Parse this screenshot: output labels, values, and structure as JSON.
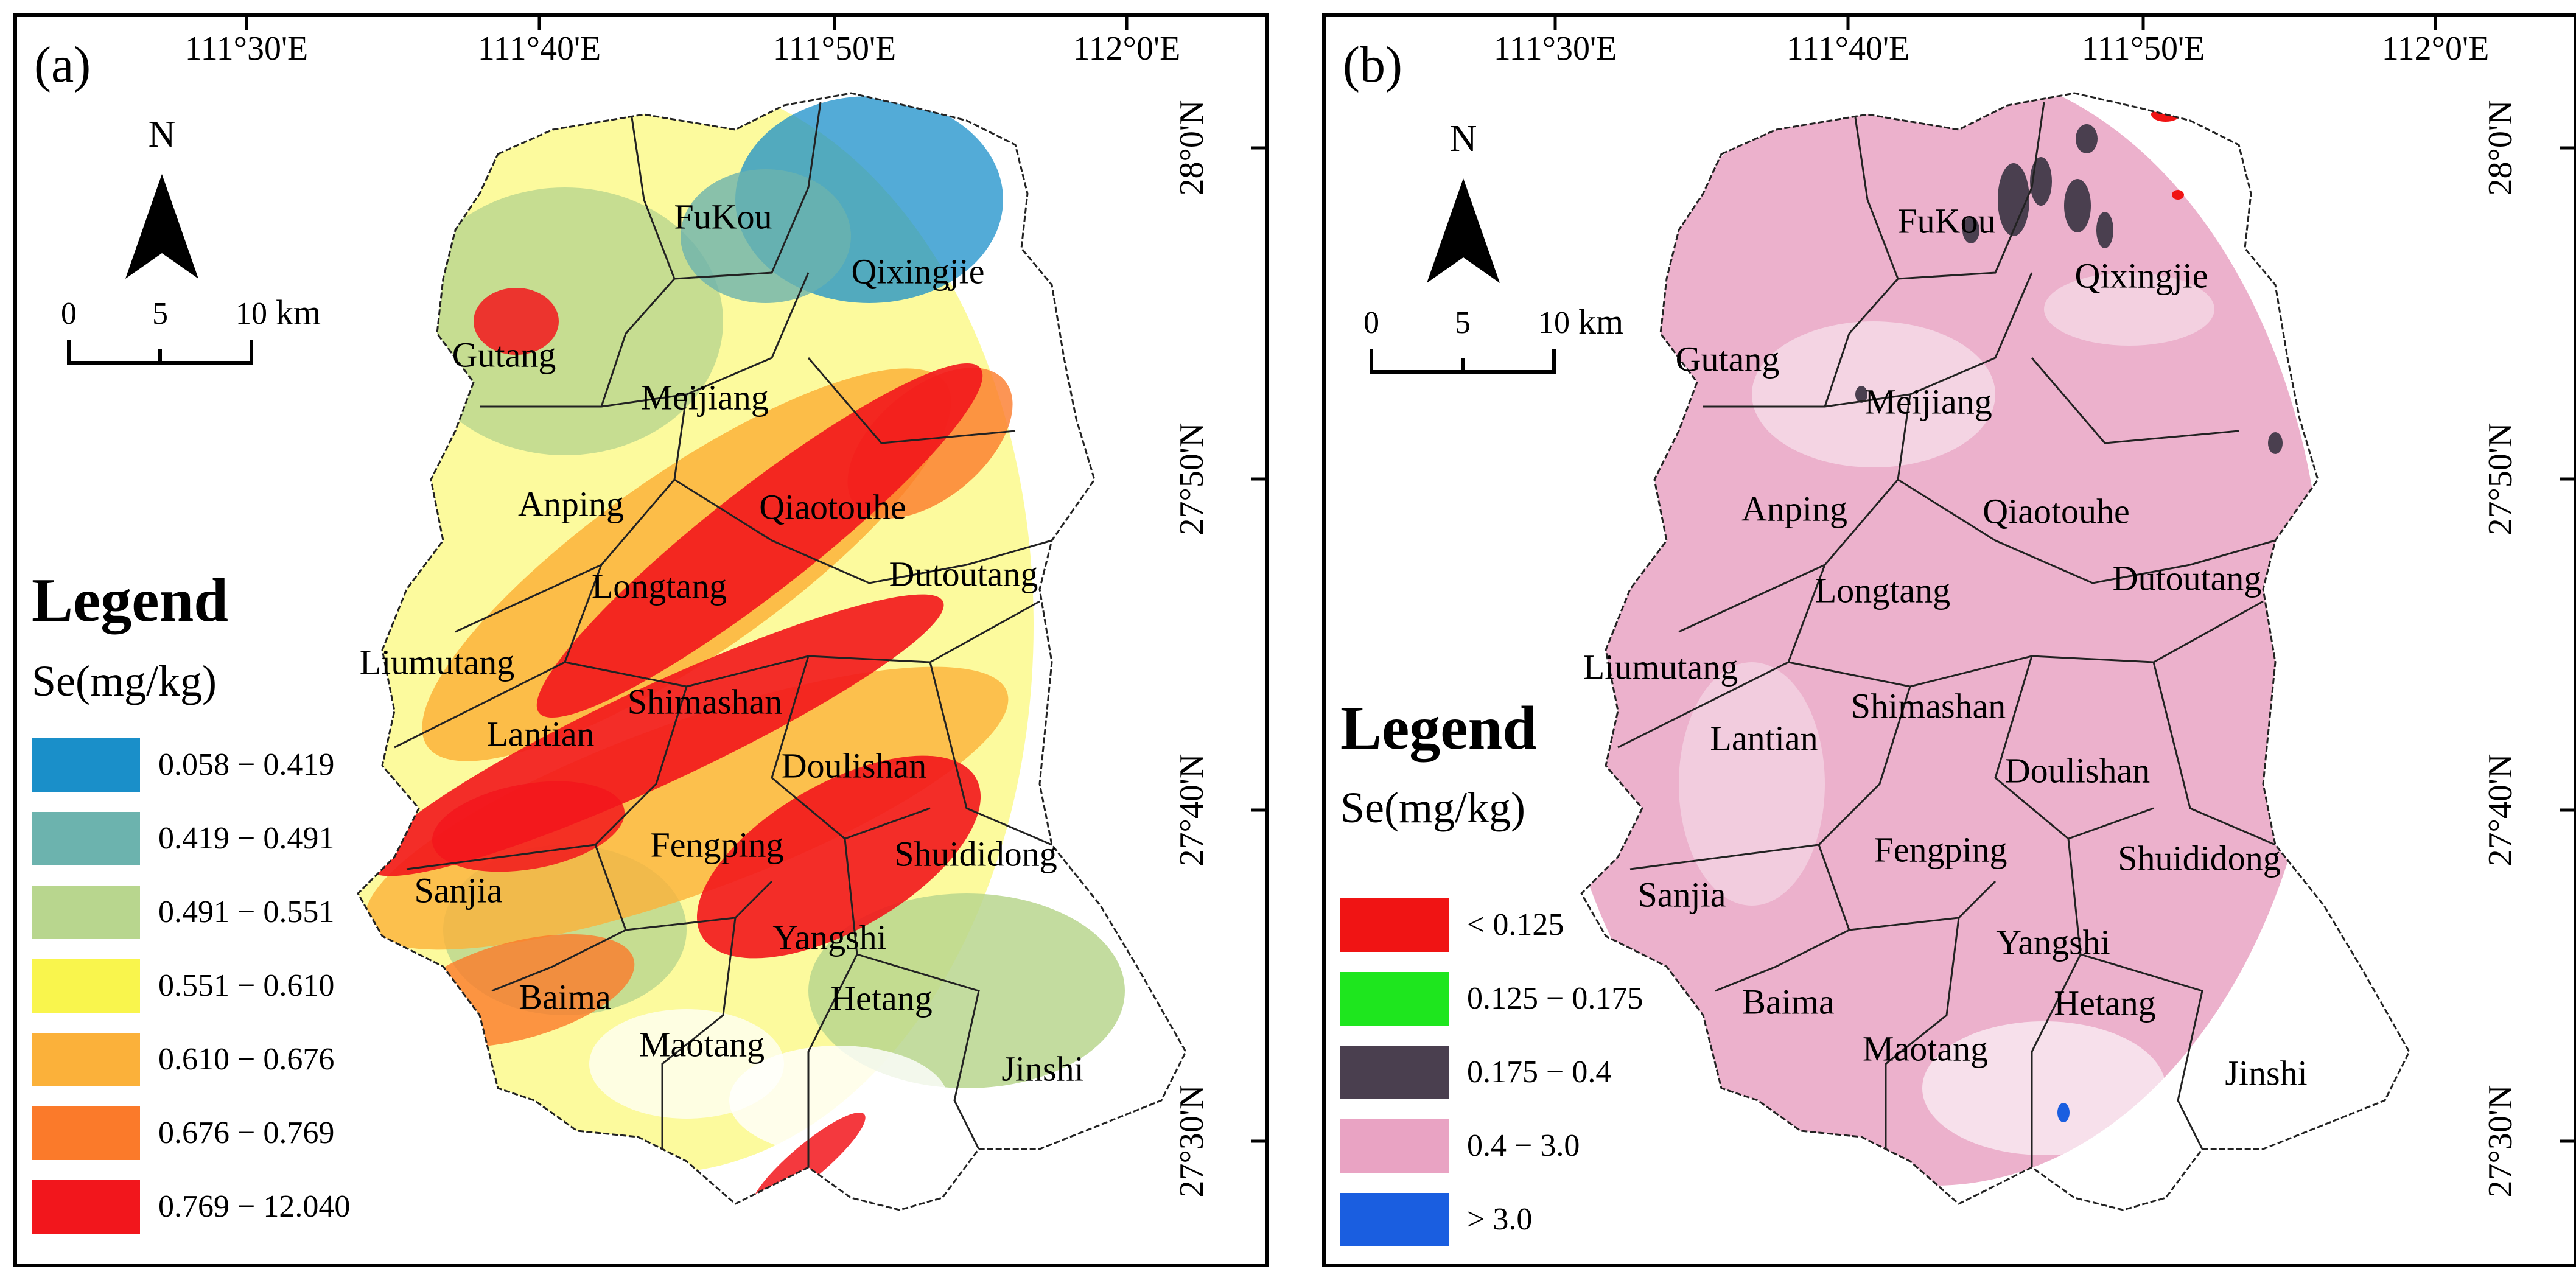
{
  "panels": [
    {
      "label": "(a)",
      "lon_labels": [
        "111°30'E",
        "111°40'E",
        "111°50'E",
        "112°0'E"
      ],
      "lat_labels": [
        "28°0'N",
        "27°50'N",
        "27°40'N",
        "27°30'N"
      ],
      "north_letter": "N",
      "scale": {
        "ticks": [
          "0",
          "5",
          "10"
        ],
        "unit": "km"
      },
      "towns": [
        "FuKou",
        "Qixingjie",
        "Gutang",
        "Meijiang",
        "Anping",
        "Qiaotouhe",
        "Longtang",
        "Dutoutang",
        "Liumutang",
        "Shimashan",
        "Lantian",
        "Doulishan",
        "Fengping",
        "Shuididong",
        "Sanjia",
        "Yangshi",
        "Baima",
        "Hetang",
        "Maotang",
        "Jinshi"
      ],
      "legend": {
        "title": "Legend",
        "unit": "Se(mg/kg)",
        "classes": [
          {
            "label": "0.058 − 0.419",
            "color": "#1a8fc9"
          },
          {
            "label": "0.419 − 0.491",
            "color": "#6cb3ae"
          },
          {
            "label": "0.491 − 0.551",
            "color": "#b8d68e"
          },
          {
            "label": "0.551 − 0.610",
            "color": "#f9f54d"
          },
          {
            "label": "0.610 − 0.676",
            "color": "#fbb13a"
          },
          {
            "label": "0.676 − 0.769",
            "color": "#fb7a2a"
          },
          {
            "label": "0.769 − 12.040",
            "color": "#f2161c"
          }
        ]
      }
    },
    {
      "label": "(b)",
      "lon_labels": [
        "111°30'E",
        "111°40'E",
        "111°50'E",
        "112°0'E"
      ],
      "lat_labels": [
        "28°0'N",
        "27°50'N",
        "27°40'N",
        "27°30'N"
      ],
      "north_letter": "N",
      "scale": {
        "ticks": [
          "0",
          "5",
          "10"
        ],
        "unit": "km"
      },
      "towns": [
        "FuKou",
        "Qixingjie",
        "Gutang",
        "Meijiang",
        "Anping",
        "Qiaotouhe",
        "Longtang",
        "Dutoutang",
        "Liumutang",
        "Shimashan",
        "Lantian",
        "Doulishan",
        "Fengping",
        "Shuididong",
        "Sanjia",
        "Yangshi",
        "Baima",
        "Hetang",
        "Maotang",
        "Jinshi"
      ],
      "legend": {
        "title": "Legend",
        "unit": "Se(mg/kg)",
        "classes": [
          {
            "label": "< 0.125",
            "color": "#f01414"
          },
          {
            "label": "0.125 − 0.175",
            "color": "#1ee61e"
          },
          {
            "label": "0.175 − 0.4",
            "color": "#4a3f4f"
          },
          {
            "label": "0.4 − 3.0",
            "color": "#e9a3c3"
          },
          {
            "label": "> 3.0",
            "color": "#1a5ee0"
          }
        ]
      }
    }
  ]
}
